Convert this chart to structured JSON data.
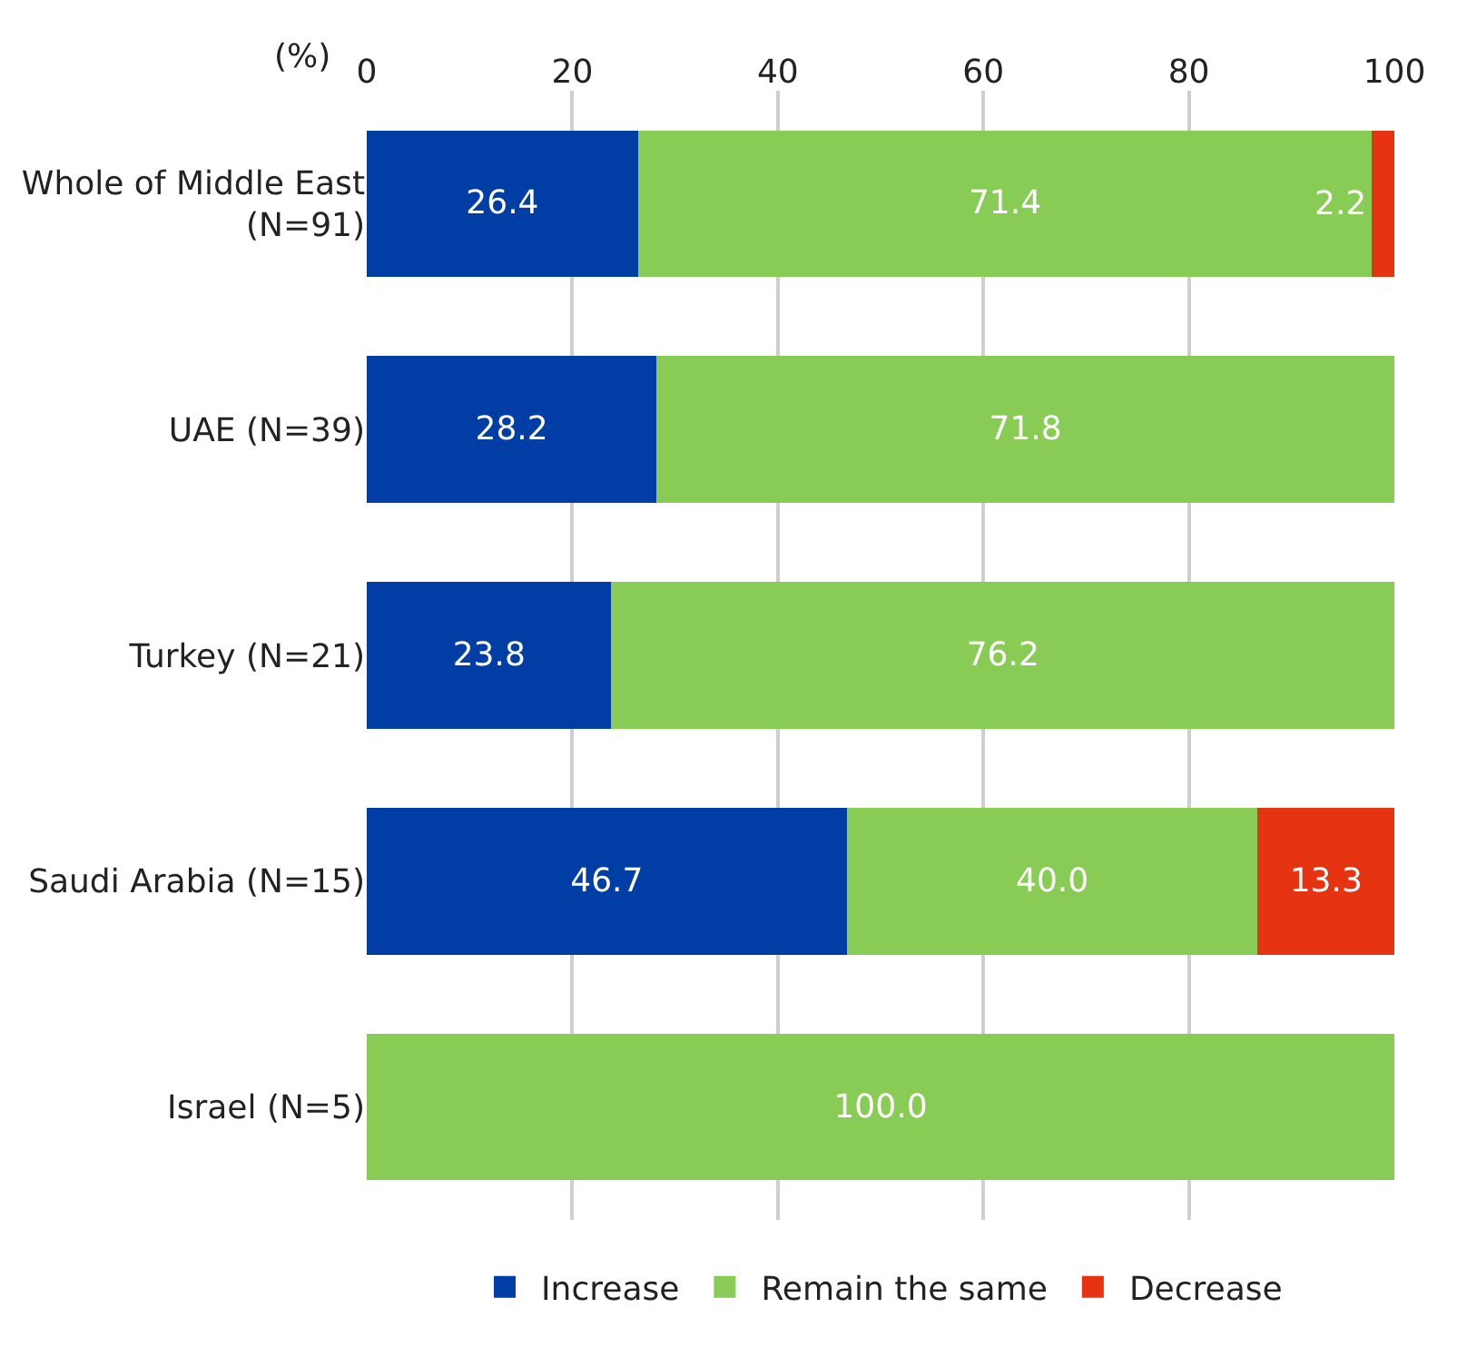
{
  "chart_data": {
    "type": "bar",
    "orientation": "horizontal",
    "stacked": true,
    "xlabel": "(%)",
    "categories": [
      "Whole of Middle East\n(N=91)",
      "UAE (N=39)",
      "Turkey (N=21)",
      "Saudi Arabia (N=15)",
      "Israel (N=5)"
    ],
    "series": [
      {
        "name": "Increase",
        "color": "#003da5",
        "values": [
          26.4,
          28.2,
          23.8,
          46.7,
          null
        ],
        "value_labels": [
          "26.4",
          "28.2",
          "23.8",
          "46.7",
          null
        ]
      },
      {
        "name": "Remain the same",
        "color": "#88cc55",
        "values": [
          71.4,
          71.8,
          76.2,
          40.0,
          100.0
        ],
        "value_labels": [
          "71.4",
          "71.8",
          "76.2",
          "40.0",
          "100.0"
        ]
      },
      {
        "name": "Decrease",
        "color": "#e63312",
        "values": [
          2.2,
          null,
          null,
          13.3,
          null
        ],
        "value_labels": [
          "2.2",
          null,
          null,
          "13.3",
          null
        ]
      }
    ],
    "xlim": [
      0,
      100
    ],
    "xticks": [
      0,
      20,
      40,
      60,
      80,
      100
    ],
    "grid": "x",
    "legend": "bottom"
  }
}
